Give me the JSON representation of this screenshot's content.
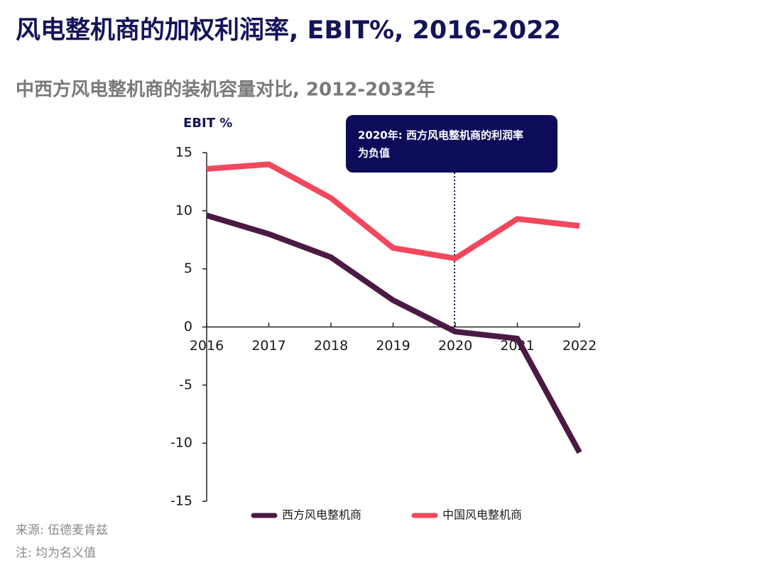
{
  "chart_data": {
    "type": "line",
    "title": "风电整机商的加权利润率, EBIT%, 2016-2022",
    "subtitle": "中西方风电整机商的装机容量对比, 2012-2032年",
    "y_label": "EBIT %",
    "categories": [
      "2016",
      "2017",
      "2018",
      "2019",
      "2020",
      "2021",
      "2022"
    ],
    "series": [
      {
        "name": "西方风电整机商",
        "color": "#4b1a44",
        "values": [
          9.6,
          8.0,
          6.0,
          2.3,
          -0.4,
          -1.0,
          -10.8
        ]
      },
      {
        "name": "中国风电整机商",
        "color": "#f2475c",
        "values": [
          13.6,
          14.0,
          11.1,
          6.8,
          5.9,
          9.3,
          8.7
        ]
      }
    ],
    "ylim": [
      -15,
      15
    ],
    "yticks": [
      -15,
      -10,
      -5,
      0,
      5,
      10,
      15
    ],
    "annotation": [
      "2020年: 西方风电整机商的利润率",
      "为负值"
    ],
    "footnotes": [
      "来源: 伍德麦肯兹",
      "注: 均为名义值"
    ]
  }
}
